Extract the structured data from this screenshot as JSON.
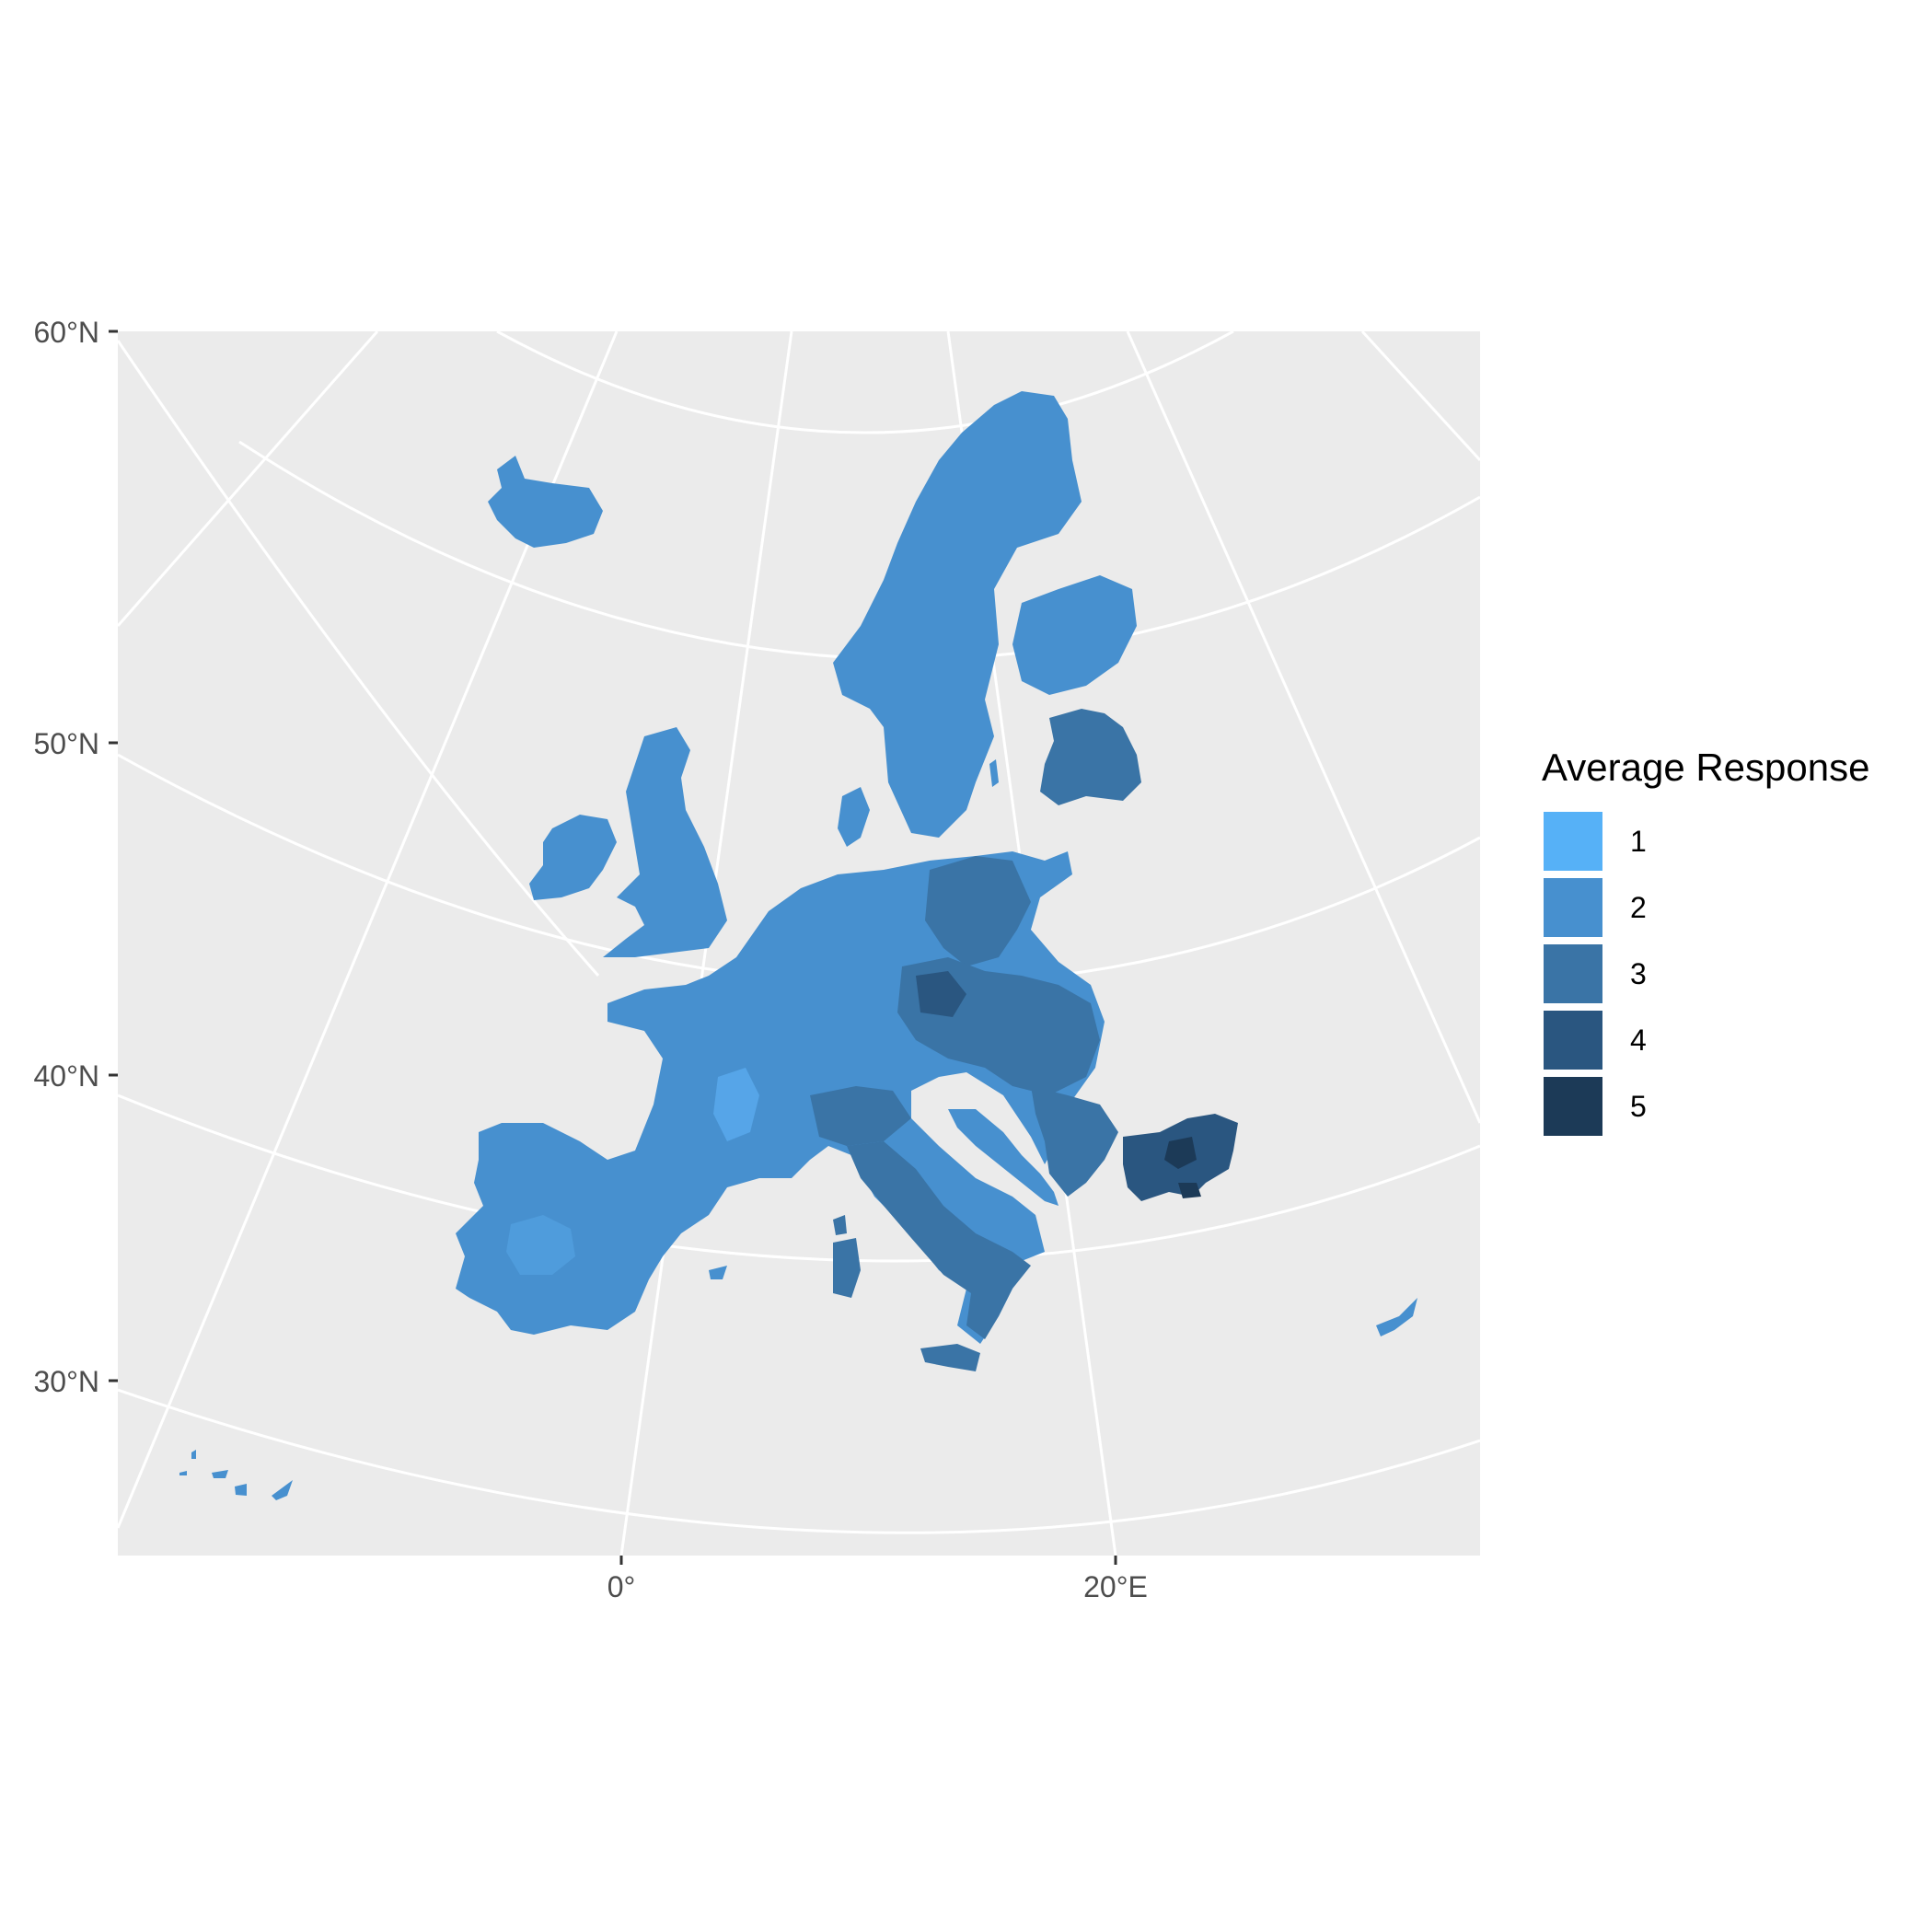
{
  "legend": {
    "title": "Average Response",
    "items": [
      {
        "label": "1",
        "color": "#56B1F7"
      },
      {
        "label": "2",
        "color": "#4790CF"
      },
      {
        "label": "3",
        "color": "#3A74A6"
      },
      {
        "label": "4",
        "color": "#2A5680"
      },
      {
        "label": "5",
        "color": "#1C3A57"
      }
    ]
  },
  "axes": {
    "y_ticks": [
      "60°N",
      "50°N",
      "40°N",
      "30°N"
    ],
    "x_ticks": [
      "0°",
      "20°E"
    ]
  },
  "colors": {
    "panel_background": "#EBEBEB",
    "gridline": "#FFFFFF",
    "region_fill": "#4790CF"
  }
}
